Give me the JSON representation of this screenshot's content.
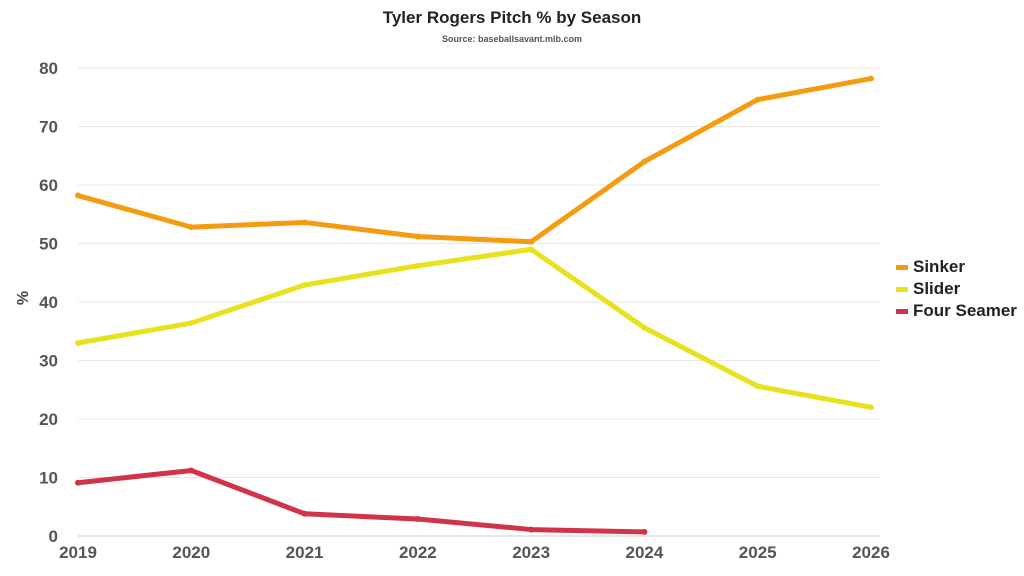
{
  "chart_data": {
    "type": "line",
    "title": "Tyler Rogers Pitch % by Season",
    "subtitle": "Source: baseballsavant.mlb.com",
    "ylabel": "%",
    "xlabel": "",
    "x": [
      2019,
      2020,
      2021,
      2022,
      2023,
      2024,
      2025,
      2026
    ],
    "ylim": [
      0,
      80
    ],
    "yticks": [
      0,
      10,
      20,
      30,
      40,
      50,
      60,
      70,
      80
    ],
    "grid": true,
    "legend_position": "right",
    "series": [
      {
        "name": "Sinker",
        "color": "#F39C12",
        "values": [
          58.2,
          52.8,
          53.6,
          51.2,
          50.3,
          64.0,
          74.6,
          78.2
        ]
      },
      {
        "name": "Slider",
        "color": "#E8E21E",
        "values": [
          33.0,
          36.4,
          42.9,
          46.2,
          49.0,
          35.6,
          25.6,
          22.0
        ]
      },
      {
        "name": "Four Seamer",
        "color": "#D1334A",
        "values": [
          9.1,
          11.2,
          3.8,
          2.9,
          1.1,
          0.7,
          null,
          null
        ]
      }
    ]
  }
}
